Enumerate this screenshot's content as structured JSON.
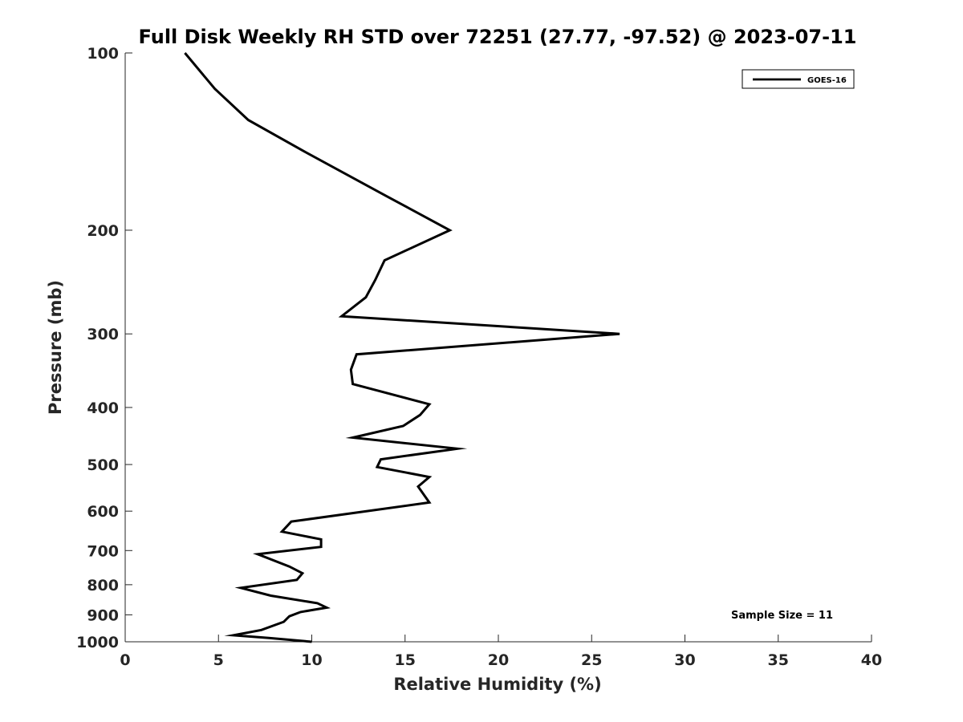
{
  "chart_data": {
    "type": "line",
    "title": "Full Disk Weekly RH STD over 72251 (27.77, -97.52) @ 2023-07-11",
    "xlabel": "Relative Humidity (%)",
    "ylabel": "Pressure (mb)",
    "xlim": [
      0,
      40
    ],
    "ylim": [
      100,
      1000
    ],
    "y_scale": "log",
    "y_inverted": true,
    "grid": false,
    "legend_position": "top-right",
    "x_ticks": [
      0,
      5,
      10,
      15,
      20,
      25,
      30,
      35,
      40
    ],
    "x_tick_labels": [
      "0",
      "5",
      "10",
      "15",
      "20",
      "25",
      "30",
      "35",
      "40"
    ],
    "y_ticks": [
      100,
      200,
      300,
      400,
      500,
      600,
      700,
      800,
      900,
      1000
    ],
    "y_tick_labels": [
      "100",
      "200",
      "300",
      "400",
      "500",
      "600",
      "700",
      "800",
      "900",
      "1000"
    ],
    "series": [
      {
        "name": "GOES-16",
        "color": "#000000",
        "x": [
          3.2,
          4.8,
          6.6,
          9.6,
          14.0,
          17.4,
          13.9,
          13.4,
          12.9,
          11.6,
          26.5,
          12.4,
          12.1,
          12.2,
          16.3,
          15.8,
          14.9,
          12.2,
          17.8,
          13.7,
          13.5,
          16.3,
          15.7,
          16.3,
          8.9,
          8.4,
          10.5,
          10.5,
          7.1,
          8.8,
          9.5,
          9.2,
          6.2,
          7.8,
          10.3,
          10.8,
          9.4,
          8.8,
          8.5,
          7.3,
          5.8,
          7.7,
          10.0
        ],
        "y": [
          100,
          115,
          130,
          147,
          175,
          200,
          225,
          243,
          260,
          280,
          300,
          325,
          345,
          365,
          395,
          412,
          430,
          450,
          470,
          490,
          505,
          525,
          545,
          580,
          625,
          650,
          670,
          690,
          710,
          745,
          765,
          785,
          810,
          835,
          860,
          875,
          890,
          905,
          925,
          955,
          975,
          985,
          1000
        ]
      }
    ],
    "annotations": [
      "Sample Size = 11"
    ]
  }
}
